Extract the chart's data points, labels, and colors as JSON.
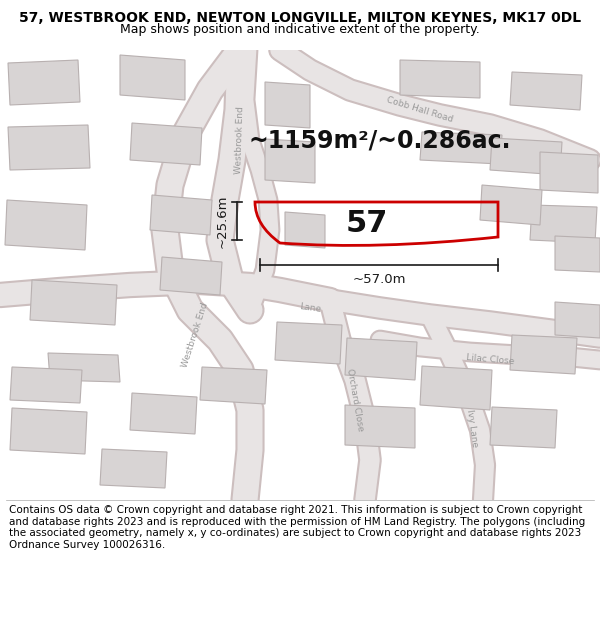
{
  "title_line1": "57, WESTBROOK END, NEWTON LONGVILLE, MILTON KEYNES, MK17 0DL",
  "title_line2": "Map shows position and indicative extent of the property.",
  "footer_text": "Contains OS data © Crown copyright and database right 2021. This information is subject to Crown copyright and database rights 2023 and is reproduced with the permission of HM Land Registry. The polygons (including the associated geometry, namely x, y co-ordinates) are subject to Crown copyright and database rights 2023 Ordnance Survey 100026316.",
  "area_text": "~1159m²/~0.286ac.",
  "label_57": "57",
  "dim_width": "~57.0m",
  "dim_height": "~25.6m",
  "map_bg": "#f2f0f0",
  "road_fill": "#e8e4e4",
  "road_edge": "#ccbebe",
  "building_color": "#d8d4d4",
  "building_outline": "#b8b0b0",
  "property_color": "#cc0000",
  "dim_color": "#1a1a1a",
  "road_label_color": "#999999",
  "title_fontsize": 10,
  "subtitle_fontsize": 9,
  "footer_fontsize": 7.5,
  "label_fontsize": 22,
  "area_fontsize": 17
}
